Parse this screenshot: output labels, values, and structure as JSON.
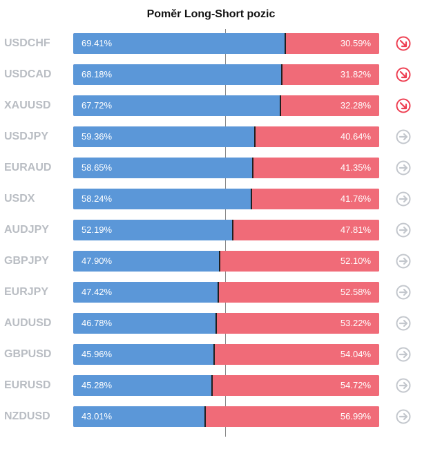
{
  "chart_data": {
    "type": "bar",
    "title": "Poměr Long-Short pozic",
    "colors": {
      "long": "#5b97d8",
      "short": "#f06b78",
      "down_icon": "#ee3f52",
      "neutral_icon": "#c3c7cd"
    },
    "rows": [
      {
        "symbol": "USDCHF",
        "long": 69.41,
        "short": 30.59,
        "long_label": "69.41%",
        "short_label": "30.59%",
        "trend": "down"
      },
      {
        "symbol": "USDCAD",
        "long": 68.18,
        "short": 31.82,
        "long_label": "68.18%",
        "short_label": "31.82%",
        "trend": "down"
      },
      {
        "symbol": "XAUUSD",
        "long": 67.72,
        "short": 32.28,
        "long_label": "67.72%",
        "short_label": "32.28%",
        "trend": "down"
      },
      {
        "symbol": "USDJPY",
        "long": 59.36,
        "short": 40.64,
        "long_label": "59.36%",
        "short_label": "40.64%",
        "trend": "neutral"
      },
      {
        "symbol": "EURAUD",
        "long": 58.65,
        "short": 41.35,
        "long_label": "58.65%",
        "short_label": "41.35%",
        "trend": "neutral"
      },
      {
        "symbol": "USDX",
        "long": 58.24,
        "short": 41.76,
        "long_label": "58.24%",
        "short_label": "41.76%",
        "trend": "neutral"
      },
      {
        "symbol": "AUDJPY",
        "long": 52.19,
        "short": 47.81,
        "long_label": "52.19%",
        "short_label": "47.81%",
        "trend": "neutral"
      },
      {
        "symbol": "GBPJPY",
        "long": 47.9,
        "short": 52.1,
        "long_label": "47.90%",
        "short_label": "52.10%",
        "trend": "neutral"
      },
      {
        "symbol": "EURJPY",
        "long": 47.42,
        "short": 52.58,
        "long_label": "47.42%",
        "short_label": "52.58%",
        "trend": "neutral"
      },
      {
        "symbol": "AUDUSD",
        "long": 46.78,
        "short": 53.22,
        "long_label": "46.78%",
        "short_label": "53.22%",
        "trend": "neutral"
      },
      {
        "symbol": "GBPUSD",
        "long": 45.96,
        "short": 54.04,
        "long_label": "45.96%",
        "short_label": "54.04%",
        "trend": "neutral"
      },
      {
        "symbol": "EURUSD",
        "long": 45.28,
        "short": 54.72,
        "long_label": "45.28%",
        "short_label": "54.72%",
        "trend": "neutral"
      },
      {
        "symbol": "NZDUSD",
        "long": 43.01,
        "short": 56.99,
        "long_label": "43.01%",
        "short_label": "56.99%",
        "trend": "neutral"
      }
    ]
  }
}
